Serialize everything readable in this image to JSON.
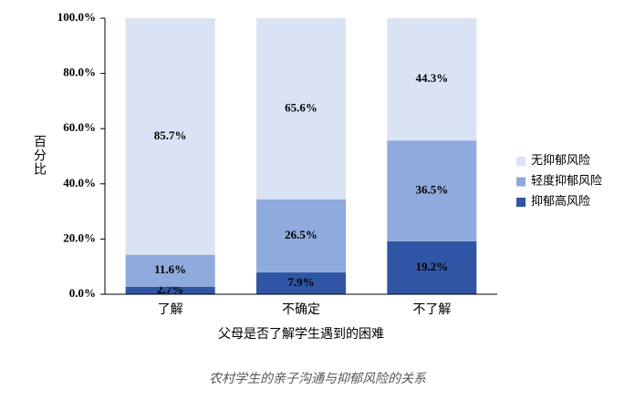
{
  "chart_data": {
    "type": "stacked-bar",
    "categories": [
      "了解",
      "不确定",
      "不了解"
    ],
    "series": [
      {
        "name": "抑郁高风险",
        "color": "#2f55a4",
        "values": [
          2.7,
          7.9,
          19.2
        ],
        "value_labels": [
          "2.7%",
          "7.9%",
          "19.2%"
        ]
      },
      {
        "name": "轻度抑郁风险",
        "color": "#8faadc",
        "values": [
          11.6,
          26.5,
          36.5
        ],
        "value_labels": [
          "11.6%",
          "26.5%",
          "36.5%"
        ]
      },
      {
        "name": "无抑郁风险",
        "color": "#dae3f3",
        "values": [
          85.7,
          65.6,
          44.3
        ],
        "value_labels": [
          "85.7%",
          "65.6%",
          "44.3%"
        ]
      }
    ],
    "ylim": [
      0,
      100
    ],
    "yticks": [
      {
        "value": 0,
        "label": "0.0%"
      },
      {
        "value": 20,
        "label": "20.0%"
      },
      {
        "value": 40,
        "label": "40.0%"
      },
      {
        "value": 60,
        "label": "60.0%"
      },
      {
        "value": 80,
        "label": "80.0%"
      },
      {
        "value": 100,
        "label": "100.0%"
      }
    ],
    "ylabel": "百分比",
    "xlabel": "父母是否了解学生遇到的困难",
    "caption": "农村学生的亲子沟通与抑郁风险的关系",
    "legend": "right"
  }
}
